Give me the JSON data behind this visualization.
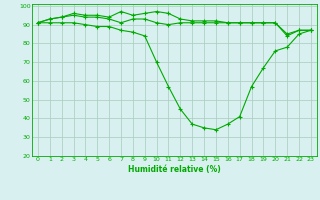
{
  "xlabel": "Humidité relative (%)",
  "x": [
    0,
    1,
    2,
    3,
    4,
    5,
    6,
    7,
    8,
    9,
    10,
    11,
    12,
    13,
    14,
    15,
    16,
    17,
    18,
    19,
    20,
    21,
    22,
    23
  ],
  "line_max": [
    91,
    93,
    94,
    96,
    95,
    95,
    94,
    97,
    95,
    96,
    97,
    96,
    93,
    92,
    92,
    92,
    91,
    91,
    91,
    91,
    91,
    85,
    87,
    87
  ],
  "line_avg": [
    91,
    93,
    94,
    95,
    94,
    94,
    93,
    91,
    93,
    93,
    91,
    90,
    91,
    91,
    91,
    91,
    91,
    91,
    91,
    91,
    91,
    84,
    87,
    87
  ],
  "line_min": [
    91,
    91,
    91,
    91,
    90,
    89,
    89,
    87,
    86,
    84,
    70,
    57,
    45,
    37,
    35,
    34,
    37,
    41,
    57,
    67,
    76,
    78,
    85,
    87
  ],
  "ylim": [
    20,
    101
  ],
  "xlim": [
    -0.5,
    23.5
  ],
  "yticks": [
    20,
    30,
    40,
    50,
    60,
    70,
    80,
    90,
    100
  ],
  "xticks": [
    0,
    1,
    2,
    3,
    4,
    5,
    6,
    7,
    8,
    9,
    10,
    11,
    12,
    13,
    14,
    15,
    16,
    17,
    18,
    19,
    20,
    21,
    22,
    23
  ],
  "line_color": "#00aa00",
  "marker": "+",
  "bg_color": "#d8f0f0",
  "grid_color": "#aaccbb",
  "figsize": [
    3.2,
    2.0
  ],
  "dpi": 100
}
